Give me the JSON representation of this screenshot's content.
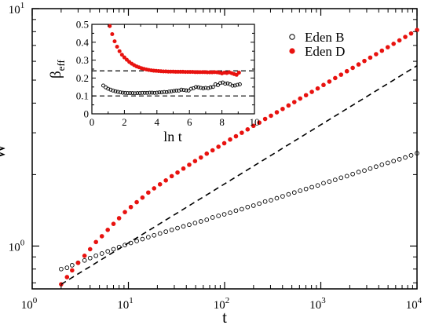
{
  "colors": {
    "eden_b": "#000000",
    "eden_d": "#e8120f",
    "axis": "#000000"
  },
  "chart_data": [
    {
      "id": "main",
      "type": "scatter",
      "xlabel": "t",
      "ylabel": "W",
      "xscale": "log",
      "yscale": "log",
      "xlim": [
        1,
        10000
      ],
      "ylim": [
        0.66,
        10
      ],
      "xticks": [
        {
          "value": 1,
          "base": "10",
          "exp": "0"
        },
        {
          "value": 10,
          "base": "10",
          "exp": "1"
        },
        {
          "value": 100,
          "base": "10",
          "exp": "2"
        },
        {
          "value": 1000,
          "base": "10",
          "exp": "3"
        },
        {
          "value": 10000,
          "base": "10",
          "exp": "4"
        }
      ],
      "yticks": [
        {
          "value": 1,
          "base": "10",
          "exp": "0"
        },
        {
          "value": 10,
          "base": "10",
          "exp": "1"
        }
      ],
      "legend": {
        "position": "top-right",
        "entries": [
          "Eden B",
          "Eden D"
        ]
      },
      "series": [
        {
          "name": "Eden B",
          "marker": "open-circle",
          "x": [
            2.0,
            2.3,
            2.6,
            3.0,
            3.5,
            4.0,
            4.6,
            5.3,
            6.1,
            7.0,
            8.0,
            9.2,
            10.6,
            12.2,
            14.0,
            16.1,
            18.5,
            21.3,
            24.5,
            28.2,
            32.4,
            37.3,
            42.9,
            49.3,
            56.7,
            65.2,
            75.0,
            86.3,
            99.2,
            114.1,
            131.2,
            150.9,
            173.5,
            199.5,
            229.4,
            263.8,
            303.4,
            348.9,
            401.2,
            461.4,
            530.6,
            610.2,
            701.7,
            807.0,
            928.0,
            1067.2,
            1227.3,
            1411.4,
            1623.1,
            1866.6,
            2146.6,
            2468.6,
            2838.9,
            3264.7,
            3754.4,
            4317.5,
            4965.1,
            5709.9,
            6566.4,
            7551.4,
            8684.1,
            10000
          ],
          "y": [
            0.8,
            0.81,
            0.83,
            0.85,
            0.87,
            0.89,
            0.91,
            0.93,
            0.95,
            0.97,
            0.99,
            1.01,
            1.03,
            1.05,
            1.07,
            1.09,
            1.11,
            1.13,
            1.15,
            1.17,
            1.19,
            1.21,
            1.23,
            1.25,
            1.27,
            1.29,
            1.32,
            1.34,
            1.36,
            1.38,
            1.41,
            1.43,
            1.46,
            1.48,
            1.51,
            1.54,
            1.56,
            1.59,
            1.62,
            1.65,
            1.68,
            1.71,
            1.74,
            1.77,
            1.8,
            1.84,
            1.87,
            1.9,
            1.94,
            1.97,
            2.01,
            2.05,
            2.08,
            2.12,
            2.16,
            2.2,
            2.24,
            2.28,
            2.32,
            2.36,
            2.41,
            2.46
          ]
        },
        {
          "name": "Eden D",
          "marker": "filled-circle",
          "x": [
            2.0,
            2.3,
            2.6,
            3.0,
            3.5,
            4.0,
            4.6,
            5.3,
            6.1,
            7.0,
            8.0,
            9.2,
            10.6,
            12.2,
            14.0,
            16.1,
            18.5,
            21.3,
            24.5,
            28.2,
            32.4,
            37.3,
            42.9,
            49.3,
            56.7,
            65.2,
            75.0,
            86.3,
            99.2,
            114.1,
            131.2,
            150.9,
            173.5,
            199.5,
            229.4,
            263.8,
            303.4,
            348.9,
            401.2,
            461.4,
            530.6,
            610.2,
            701.7,
            807.0,
            928.0,
            1067.2,
            1227.3,
            1411.4,
            1623.1,
            1866.6,
            2146.6,
            2468.6,
            2838.9,
            3264.7,
            3754.4,
            4317.5,
            4965.1,
            5709.9,
            6566.4,
            7551.4,
            8684.1,
            10000
          ],
          "y": [
            0.69,
            0.74,
            0.79,
            0.85,
            0.91,
            0.97,
            1.04,
            1.1,
            1.17,
            1.24,
            1.31,
            1.39,
            1.46,
            1.53,
            1.6,
            1.68,
            1.75,
            1.82,
            1.89,
            1.97,
            2.04,
            2.12,
            2.2,
            2.28,
            2.36,
            2.45,
            2.53,
            2.62,
            2.71,
            2.81,
            2.9,
            3.0,
            3.1,
            3.21,
            3.31,
            3.43,
            3.54,
            3.66,
            3.78,
            3.91,
            4.04,
            4.18,
            4.32,
            4.46,
            4.61,
            4.77,
            4.93,
            5.1,
            5.27,
            5.45,
            5.63,
            5.82,
            6.02,
            6.22,
            6.43,
            6.65,
            6.88,
            7.11,
            7.35,
            7.6,
            7.86,
            8.13
          ]
        }
      ],
      "reference_lines": [
        {
          "style": "dashed",
          "x": [
            2.0,
            10000
          ],
          "y": [
            0.69,
            5.75
          ]
        }
      ]
    },
    {
      "id": "inset",
      "type": "scatter",
      "xlabel": "ln t",
      "ylabel": "β",
      "ylabel_sub": "eff",
      "xlim": [
        0,
        10
      ],
      "ylim": [
        0,
        0.5
      ],
      "xticks": [
        0,
        2,
        4,
        6,
        8,
        10
      ],
      "yticks": [
        0,
        0.1,
        0.2,
        0.3,
        0.4,
        0.5
      ],
      "ytick_labels": [
        "0",
        "0.1",
        "0.2",
        "0.3",
        "0.4",
        "0.5"
      ],
      "series": [
        {
          "name": "Eden B",
          "marker": "open-circle",
          "x": [
            0.7,
            0.85,
            1.0,
            1.15,
            1.3,
            1.45,
            1.6,
            1.75,
            1.9,
            2.05,
            2.2,
            2.35,
            2.5,
            2.65,
            2.8,
            2.95,
            3.1,
            3.25,
            3.4,
            3.55,
            3.7,
            3.85,
            4.0,
            4.15,
            4.3,
            4.45,
            4.6,
            4.75,
            4.9,
            5.05,
            5.2,
            5.35,
            5.5,
            5.65,
            5.8,
            5.95,
            6.1,
            6.25,
            6.4,
            6.55,
            6.7,
            6.85,
            7.0,
            7.15,
            7.3,
            7.45,
            7.6,
            7.75,
            7.9,
            8.05,
            8.2,
            8.35,
            8.5,
            8.65,
            8.8,
            8.95,
            9.1
          ],
          "y": [
            0.158,
            0.148,
            0.14,
            0.135,
            0.13,
            0.126,
            0.123,
            0.12,
            0.118,
            0.117,
            0.116,
            0.116,
            0.116,
            0.115,
            0.116,
            0.116,
            0.117,
            0.117,
            0.117,
            0.118,
            0.118,
            0.117,
            0.118,
            0.12,
            0.12,
            0.122,
            0.121,
            0.124,
            0.126,
            0.128,
            0.13,
            0.13,
            0.135,
            0.133,
            0.131,
            0.13,
            0.14,
            0.143,
            0.15,
            0.148,
            0.145,
            0.142,
            0.145,
            0.143,
            0.148,
            0.15,
            0.165,
            0.16,
            0.172,
            0.175,
            0.168,
            0.17,
            0.165,
            0.157,
            0.158,
            0.162,
            0.165
          ]
        },
        {
          "name": "Eden D",
          "marker": "filled-circle",
          "x": [
            1.1,
            1.25,
            1.4,
            1.55,
            1.7,
            1.85,
            2.0,
            2.15,
            2.3,
            2.45,
            2.6,
            2.75,
            2.9,
            3.05,
            3.2,
            3.35,
            3.5,
            3.65,
            3.8,
            3.95,
            4.1,
            4.25,
            4.4,
            4.55,
            4.7,
            4.85,
            5.0,
            5.15,
            5.3,
            5.45,
            5.6,
            5.75,
            5.9,
            6.05,
            6.2,
            6.35,
            6.5,
            6.65,
            6.8,
            6.95,
            7.1,
            7.25,
            7.4,
            7.55,
            7.7,
            7.85,
            8.0,
            8.15,
            8.3,
            8.45,
            8.6,
            8.75,
            8.9,
            9.05
          ],
          "y": [
            0.49,
            0.445,
            0.405,
            0.375,
            0.35,
            0.33,
            0.315,
            0.302,
            0.29,
            0.28,
            0.272,
            0.265,
            0.26,
            0.255,
            0.251,
            0.248,
            0.245,
            0.243,
            0.241,
            0.24,
            0.239,
            0.238,
            0.237,
            0.237,
            0.236,
            0.236,
            0.236,
            0.235,
            0.235,
            0.235,
            0.235,
            0.234,
            0.234,
            0.234,
            0.234,
            0.233,
            0.233,
            0.233,
            0.233,
            0.233,
            0.232,
            0.232,
            0.232,
            0.233,
            0.232,
            0.23,
            0.226,
            0.23,
            0.228,
            0.232,
            0.227,
            0.222,
            0.218,
            0.23
          ]
        }
      ],
      "reference_lines": [
        {
          "style": "dashed",
          "y": 0.24
        },
        {
          "style": "dashed",
          "y": 0.1
        }
      ]
    }
  ]
}
